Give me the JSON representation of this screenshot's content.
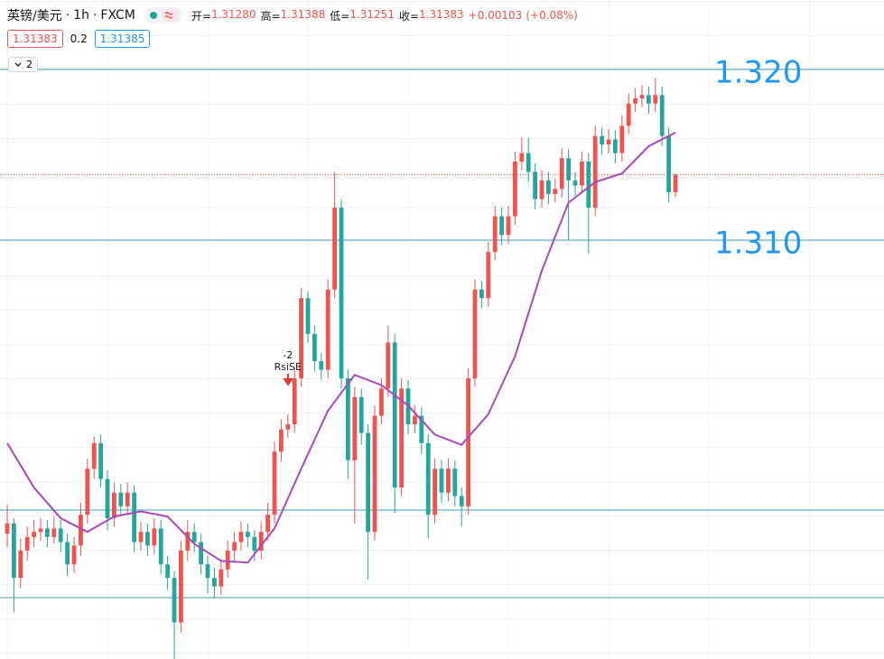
{
  "toolbar": {
    "symbol": "英镑/美元",
    "interval": "1h",
    "source": "FXCM",
    "separator": "·",
    "ohlc": [
      {
        "label": "开=",
        "value": "1.31280"
      },
      {
        "label": "高=",
        "value": "1.31388"
      },
      {
        "label": "低=",
        "value": "1.31251"
      },
      {
        "label": "收=",
        "value": "1.31383"
      }
    ],
    "change": "+0.00103",
    "change_pct": "(+0.08%)",
    "sell": "1.31383",
    "spread": "0.2",
    "buy": "1.31385",
    "collapsed": "2"
  },
  "chart_data": {
    "type": "candlestick",
    "up_color": "#ef5350",
    "down_color": "#26a69a",
    "ylim": [
      1.28545,
      1.32407
    ],
    "candles": [
      [
        1.2928,
        1.2945,
        1.292,
        1.2934
      ],
      [
        1.2934,
        1.2937,
        1.2882,
        1.2902
      ],
      [
        1.2902,
        1.2925,
        1.2896,
        1.2918
      ],
      [
        1.2918,
        1.2932,
        1.2912,
        1.2926
      ],
      [
        1.2926,
        1.2936,
        1.292,
        1.2929
      ],
      [
        1.2929,
        1.2937,
        1.2924,
        1.2931
      ],
      [
        1.2931,
        1.2936,
        1.292,
        1.2926
      ],
      [
        1.2926,
        1.2938,
        1.2922,
        1.2931
      ],
      [
        1.2931,
        1.2936,
        1.2917,
        1.2923
      ],
      [
        1.2923,
        1.2928,
        1.2903,
        1.291
      ],
      [
        1.291,
        1.2926,
        1.2905,
        1.2921
      ],
      [
        1.2921,
        1.2946,
        1.2915,
        1.2939
      ],
      [
        1.2939,
        1.2972,
        1.2934,
        1.2966
      ],
      [
        1.2966,
        1.2985,
        1.296,
        1.2981
      ],
      [
        1.2981,
        1.2986,
        1.2955,
        1.296
      ],
      [
        1.296,
        1.2965,
        1.293,
        1.2937
      ],
      [
        1.2937,
        1.2958,
        1.2932,
        1.2952
      ],
      [
        1.2952,
        1.2957,
        1.2938,
        1.2944
      ],
      [
        1.2944,
        1.2958,
        1.2939,
        1.2952
      ],
      [
        1.2952,
        1.2956,
        1.2917,
        1.2923
      ],
      [
        1.2923,
        1.2935,
        1.2918,
        1.2929
      ],
      [
        1.2929,
        1.2934,
        1.2915,
        1.2921
      ],
      [
        1.2921,
        1.2937,
        1.2916,
        1.2931
      ],
      [
        1.2931,
        1.2936,
        1.2904,
        1.291
      ],
      [
        1.291,
        1.2915,
        1.2895,
        1.2902
      ],
      [
        1.2902,
        1.2906,
        1.285,
        1.2876
      ],
      [
        1.2876,
        1.2924,
        1.287,
        1.2918
      ],
      [
        1.2918,
        1.2936,
        1.2912,
        1.2929
      ],
      [
        1.2929,
        1.2934,
        1.2917,
        1.2923
      ],
      [
        1.2923,
        1.2928,
        1.2904,
        1.291
      ],
      [
        1.291,
        1.2915,
        1.2893,
        1.2902
      ],
      [
        1.2902,
        1.2908,
        1.289,
        1.2897
      ],
      [
        1.2897,
        1.2913,
        1.2892,
        1.2907
      ],
      [
        1.2907,
        1.2924,
        1.2902,
        1.2918
      ],
      [
        1.2918,
        1.2929,
        1.2912,
        1.2923
      ],
      [
        1.2923,
        1.2935,
        1.2918,
        1.2929
      ],
      [
        1.2929,
        1.2934,
        1.292,
        1.2926
      ],
      [
        1.2926,
        1.293,
        1.2912,
        1.2918
      ],
      [
        1.2918,
        1.2935,
        1.2913,
        1.2929
      ],
      [
        1.2929,
        1.2946,
        1.2924,
        1.2939
      ],
      [
        1.2939,
        1.2982,
        1.2934,
        1.2976
      ],
      [
        1.2976,
        1.2995,
        1.297,
        1.2989
      ],
      [
        1.2989,
        1.2998,
        1.2984,
        1.2992
      ],
      [
        1.2992,
        1.3025,
        1.2987,
        1.3019
      ],
      [
        1.3019,
        1.3072,
        1.3014,
        1.3066
      ],
      [
        1.3066,
        1.307,
        1.304,
        1.3045
      ],
      [
        1.3045,
        1.305,
        1.3023,
        1.3029
      ],
      [
        1.3029,
        1.3034,
        1.3018,
        1.3024
      ],
      [
        1.3024,
        1.3077,
        1.3019,
        1.3071
      ],
      [
        1.3071,
        1.314,
        1.3066,
        1.3119
      ],
      [
        1.3119,
        1.3124,
        1.3013,
        1.3019
      ],
      [
        1.3019,
        1.3024,
        1.296,
        1.2971
      ],
      [
        1.2971,
        1.3014,
        1.2934,
        1.3008
      ],
      [
        1.3008,
        1.3013,
        1.298,
        1.2987
      ],
      [
        1.2987,
        1.2992,
        1.2901,
        1.2929
      ],
      [
        1.2929,
        1.3003,
        1.2924,
        1.2997
      ],
      [
        1.2997,
        1.3019,
        1.2992,
        1.3013
      ],
      [
        1.3013,
        1.305,
        1.3008,
        1.304
      ],
      [
        1.304,
        1.3045,
        1.294,
        1.2955
      ],
      [
        1.2955,
        1.3019,
        1.295,
        1.3013
      ],
      [
        1.3013,
        1.3018,
        1.2986,
        1.2992
      ],
      [
        1.2992,
        1.3003,
        1.2987,
        1.2997
      ],
      [
        1.2997,
        1.3002,
        1.2975,
        1.2981
      ],
      [
        1.2981,
        1.2986,
        1.2925,
        1.2939
      ],
      [
        1.2939,
        1.2972,
        1.2934,
        1.2966
      ],
      [
        1.2966,
        1.2971,
        1.2946,
        1.2952
      ],
      [
        1.2952,
        1.2972,
        1.2947,
        1.2966
      ],
      [
        1.2966,
        1.2971,
        1.2944,
        1.295
      ],
      [
        1.295,
        1.2955,
        1.2932,
        1.2944
      ],
      [
        1.2944,
        1.3025,
        1.2939,
        1.3019
      ],
      [
        1.3019,
        1.3077,
        1.3014,
        1.3071
      ],
      [
        1.3071,
        1.3076,
        1.306,
        1.3066
      ],
      [
        1.3066,
        1.3099,
        1.3061,
        1.3093
      ],
      [
        1.3093,
        1.312,
        1.3088,
        1.3114
      ],
      [
        1.3114,
        1.3119,
        1.3097,
        1.3103
      ],
      [
        1.3103,
        1.312,
        1.3098,
        1.3114
      ],
      [
        1.3114,
        1.3152,
        1.3109,
        1.3146
      ],
      [
        1.3146,
        1.316,
        1.3141,
        1.3151
      ],
      [
        1.3151,
        1.316,
        1.3134,
        1.314
      ],
      [
        1.314,
        1.3145,
        1.3118,
        1.3124
      ],
      [
        1.3124,
        1.3141,
        1.3119,
        1.3135
      ],
      [
        1.3135,
        1.314,
        1.3121,
        1.3127
      ],
      [
        1.3127,
        1.3136,
        1.3122,
        1.313
      ],
      [
        1.313,
        1.3154,
        1.3125,
        1.3148
      ],
      [
        1.3148,
        1.3153,
        1.31,
        1.3135
      ],
      [
        1.3135,
        1.314,
        1.3126,
        1.3132
      ],
      [
        1.3132,
        1.3152,
        1.3127,
        1.3146
      ],
      [
        1.3146,
        1.3151,
        1.3092,
        1.3119
      ],
      [
        1.3119,
        1.3167,
        1.3114,
        1.3161
      ],
      [
        1.3161,
        1.3166,
        1.315,
        1.3156
      ],
      [
        1.3156,
        1.3165,
        1.3151,
        1.3159
      ],
      [
        1.3159,
        1.3164,
        1.3145,
        1.3151
      ],
      [
        1.3151,
        1.3173,
        1.3146,
        1.3167
      ],
      [
        1.3167,
        1.3186,
        1.3162,
        1.318
      ],
      [
        1.318,
        1.3189,
        1.3175,
        1.3183
      ],
      [
        1.3183,
        1.3191,
        1.3178,
        1.3185
      ],
      [
        1.3185,
        1.319,
        1.3174,
        1.318
      ],
      [
        1.318,
        1.3195,
        1.3175,
        1.3185
      ],
      [
        1.3185,
        1.319,
        1.3155,
        1.3161
      ],
      [
        1.3161,
        1.3166,
        1.3122,
        1.3128
      ],
      [
        1.3128,
        1.31388,
        1.31251,
        1.31383
      ]
    ],
    "ma": {
      "color": "#ab47bc",
      "x": [
        0,
        4,
        8,
        12,
        16,
        20,
        24,
        28,
        32,
        36,
        40,
        44,
        48,
        52,
        56,
        60,
        64,
        68,
        72,
        76,
        80,
        84,
        88,
        92,
        96,
        100
      ],
      "values": [
        1.2981,
        1.2955,
        1.2937,
        1.2929,
        1.2938,
        1.2941,
        1.2938,
        1.2922,
        1.2912,
        1.2911,
        1.2931,
        1.2966,
        1.3,
        1.3021,
        1.3015,
        1.3003,
        1.2986,
        1.298,
        1.2998,
        1.3032,
        1.3082,
        1.3122,
        1.3134,
        1.3139,
        1.3155,
        1.3163
      ]
    },
    "levels": {
      "color": "#3aa0b5",
      "values": [
        {
          "value": 1.32,
          "label": "1.320"
        },
        {
          "value": 1.31,
          "label": "1.310"
        },
        1.29418,
        1.28905
      ]
    },
    "signal": {
      "candle": 42,
      "value": "-2",
      "label": "RsiSE"
    }
  }
}
